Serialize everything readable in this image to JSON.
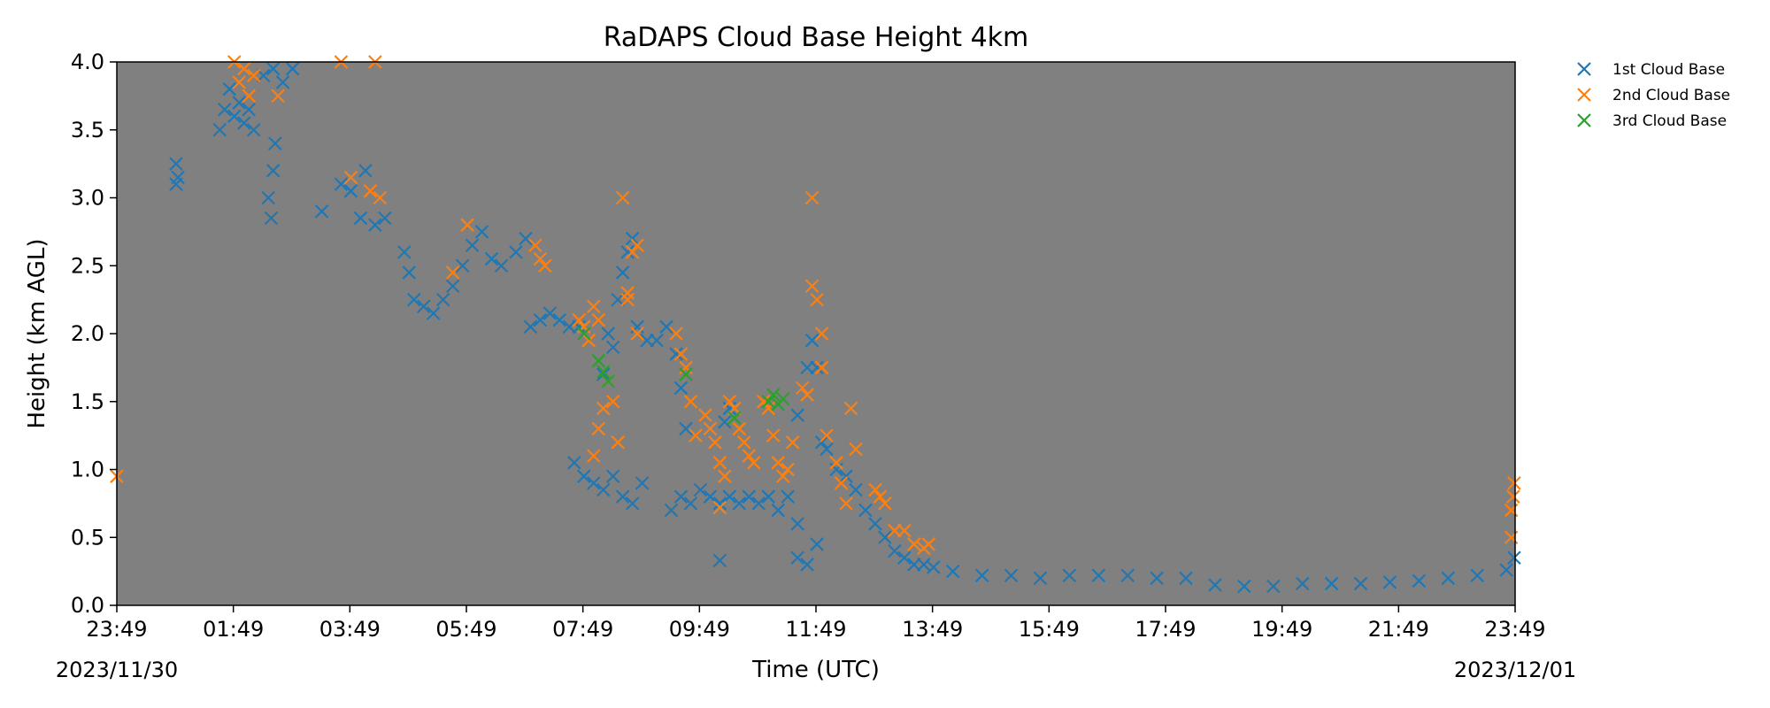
{
  "chart_data": {
    "type": "scatter",
    "title": "RaDAPS Cloud Base Height 4km",
    "xlabel": "Time (UTC)",
    "ylabel": "Height (km AGL)",
    "plot_background": "#808080",
    "marker": "x",
    "ylim": [
      0,
      4.0
    ],
    "xlim_hours_utc_from_2023-11-30T23:49": [
      0,
      24
    ],
    "x_ticks": [
      "23:49",
      "01:49",
      "03:49",
      "05:49",
      "07:49",
      "09:49",
      "11:49",
      "13:49",
      "15:49",
      "17:49",
      "19:49",
      "21:49",
      "23:49"
    ],
    "x_date_labels": {
      "start": "2023/11/30",
      "end": "2023/12/01"
    },
    "y_ticks": [
      "0.0",
      "0.5",
      "1.0",
      "1.5",
      "2.0",
      "2.5",
      "3.0",
      "3.5",
      "4.0"
    ],
    "legend_position": "outside-top-right",
    "series": [
      {
        "name": "1st Cloud Base",
        "color": "#1f77b4",
        "points": [
          [
            "00:50",
            3.1
          ],
          [
            "00:50",
            3.25
          ],
          [
            "00:52",
            3.15
          ],
          [
            "01:35",
            3.5
          ],
          [
            "01:40",
            3.65
          ],
          [
            "01:45",
            3.8
          ],
          [
            "01:50",
            3.6
          ],
          [
            "01:55",
            3.7
          ],
          [
            "02:00",
            3.55
          ],
          [
            "02:05",
            3.65
          ],
          [
            "02:10",
            3.5
          ],
          [
            "02:20",
            3.9
          ],
          [
            "02:30",
            3.95
          ],
          [
            "02:40",
            3.85
          ],
          [
            "02:50",
            3.95
          ],
          [
            "02:25",
            3.0
          ],
          [
            "02:28",
            2.85
          ],
          [
            "02:30",
            3.2
          ],
          [
            "02:32",
            3.4
          ],
          [
            "03:20",
            2.9
          ],
          [
            "03:40",
            3.1
          ],
          [
            "03:50",
            3.05
          ],
          [
            "04:00",
            2.85
          ],
          [
            "04:05",
            3.2
          ],
          [
            "04:15",
            2.8
          ],
          [
            "04:25",
            2.85
          ],
          [
            "04:45",
            2.6
          ],
          [
            "04:50",
            2.45
          ],
          [
            "04:55",
            2.25
          ],
          [
            "05:05",
            2.2
          ],
          [
            "05:15",
            2.15
          ],
          [
            "05:25",
            2.25
          ],
          [
            "05:35",
            2.35
          ],
          [
            "05:45",
            2.5
          ],
          [
            "05:55",
            2.65
          ],
          [
            "06:05",
            2.75
          ],
          [
            "06:15",
            2.55
          ],
          [
            "06:25",
            2.5
          ],
          [
            "06:40",
            2.6
          ],
          [
            "06:50",
            2.7
          ],
          [
            "06:55",
            2.05
          ],
          [
            "07:05",
            2.1
          ],
          [
            "07:15",
            2.15
          ],
          [
            "07:25",
            2.1
          ],
          [
            "07:35",
            2.05
          ],
          [
            "07:45",
            2.05
          ],
          [
            "07:40",
            1.05
          ],
          [
            "07:50",
            0.95
          ],
          [
            "08:00",
            0.9
          ],
          [
            "08:10",
            0.85
          ],
          [
            "08:20",
            0.95
          ],
          [
            "08:30",
            0.8
          ],
          [
            "08:40",
            0.75
          ],
          [
            "08:50",
            0.9
          ],
          [
            "08:10",
            1.7
          ],
          [
            "08:15",
            2.0
          ],
          [
            "08:20",
            1.9
          ],
          [
            "08:25",
            2.25
          ],
          [
            "08:30",
            2.45
          ],
          [
            "08:35",
            2.6
          ],
          [
            "08:40",
            2.7
          ],
          [
            "08:45",
            2.05
          ],
          [
            "08:55",
            1.95
          ],
          [
            "09:05",
            1.95
          ],
          [
            "09:15",
            2.05
          ],
          [
            "09:25",
            1.85
          ],
          [
            "09:30",
            1.6
          ],
          [
            "09:35",
            1.3
          ],
          [
            "09:20",
            0.7
          ],
          [
            "09:30",
            0.8
          ],
          [
            "09:40",
            0.75
          ],
          [
            "09:50",
            0.85
          ],
          [
            "10:00",
            0.8
          ],
          [
            "10:10",
            0.75
          ],
          [
            "10:20",
            0.8
          ],
          [
            "10:30",
            0.75
          ],
          [
            "10:40",
            0.8
          ],
          [
            "10:50",
            0.75
          ],
          [
            "11:00",
            0.8
          ],
          [
            "11:10",
            0.7
          ],
          [
            "11:20",
            0.8
          ],
          [
            "11:30",
            0.6
          ],
          [
            "10:15",
            1.35
          ],
          [
            "10:20",
            1.45
          ],
          [
            "10:10",
            0.33
          ],
          [
            "11:30",
            0.35
          ],
          [
            "11:40",
            0.3
          ],
          [
            "11:50",
            0.45
          ],
          [
            "11:30",
            1.4
          ],
          [
            "11:35",
            1.6
          ],
          [
            "11:40",
            1.75
          ],
          [
            "11:45",
            1.95
          ],
          [
            "11:50",
            1.75
          ],
          [
            "11:55",
            1.2
          ],
          [
            "12:00",
            1.15
          ],
          [
            "12:10",
            1.0
          ],
          [
            "12:20",
            0.95
          ],
          [
            "12:30",
            0.85
          ],
          [
            "12:40",
            0.7
          ],
          [
            "12:50",
            0.6
          ],
          [
            "13:00",
            0.5
          ],
          [
            "13:10",
            0.4
          ],
          [
            "13:20",
            0.35
          ],
          [
            "13:30",
            0.3
          ],
          [
            "13:40",
            0.3
          ],
          [
            "13:50",
            0.28
          ],
          [
            "14:10",
            0.25
          ],
          [
            "14:40",
            0.22
          ],
          [
            "15:10",
            0.22
          ],
          [
            "15:40",
            0.2
          ],
          [
            "16:10",
            0.22
          ],
          [
            "16:40",
            0.22
          ],
          [
            "17:10",
            0.22
          ],
          [
            "17:40",
            0.2
          ],
          [
            "18:10",
            0.2
          ],
          [
            "18:40",
            0.15
          ],
          [
            "19:10",
            0.14
          ],
          [
            "19:40",
            0.14
          ],
          [
            "20:10",
            0.16
          ],
          [
            "20:40",
            0.16
          ],
          [
            "21:10",
            0.16
          ],
          [
            "21:40",
            0.17
          ],
          [
            "22:10",
            0.18
          ],
          [
            "22:40",
            0.2
          ],
          [
            "23:10",
            0.22
          ],
          [
            "23:40",
            0.26
          ],
          [
            "23:48",
            0.35
          ]
        ]
      },
      {
        "name": "2nd Cloud Base",
        "color": "#ff7f0e",
        "points": [
          [
            "01:50",
            4.0
          ],
          [
            "01:55",
            3.85
          ],
          [
            "02:00",
            3.95
          ],
          [
            "02:05",
            3.75
          ],
          [
            "02:10",
            3.9
          ],
          [
            "02:35",
            3.75
          ],
          [
            "03:40",
            4.0
          ],
          [
            "04:15",
            4.0
          ],
          [
            "04:10",
            3.05
          ],
          [
            "04:20",
            3.0
          ],
          [
            "03:50",
            3.15
          ],
          [
            "05:50",
            2.8
          ],
          [
            "05:35",
            2.45
          ],
          [
            "07:00",
            2.65
          ],
          [
            "07:05",
            2.55
          ],
          [
            "07:10",
            2.5
          ],
          [
            "07:45",
            2.1
          ],
          [
            "07:50",
            2.05
          ],
          [
            "07:55",
            1.95
          ],
          [
            "08:00",
            2.2
          ],
          [
            "08:05",
            2.1
          ],
          [
            "08:00",
            1.1
          ],
          [
            "08:05",
            1.3
          ],
          [
            "08:10",
            1.45
          ],
          [
            "08:15",
            1.65
          ],
          [
            "08:20",
            1.5
          ],
          [
            "08:25",
            1.2
          ],
          [
            "08:30",
            3.0
          ],
          [
            "08:35",
            2.25
          ],
          [
            "08:35",
            2.3
          ],
          [
            "08:40",
            2.6
          ],
          [
            "08:45",
            2.65
          ],
          [
            "08:45",
            2.0
          ],
          [
            "09:25",
            2.0
          ],
          [
            "09:30",
            1.85
          ],
          [
            "09:35",
            1.75
          ],
          [
            "09:40",
            1.5
          ],
          [
            "09:45",
            1.25
          ],
          [
            "09:55",
            1.4
          ],
          [
            "10:00",
            1.3
          ],
          [
            "10:05",
            1.2
          ],
          [
            "10:10",
            1.05
          ],
          [
            "10:15",
            0.95
          ],
          [
            "10:10",
            0.72
          ],
          [
            "10:20",
            1.5
          ],
          [
            "10:25",
            1.45
          ],
          [
            "10:30",
            1.3
          ],
          [
            "10:35",
            1.2
          ],
          [
            "10:40",
            1.1
          ],
          [
            "10:45",
            1.05
          ],
          [
            "10:55",
            1.5
          ],
          [
            "11:00",
            1.45
          ],
          [
            "11:05",
            1.25
          ],
          [
            "11:10",
            1.05
          ],
          [
            "11:15",
            0.95
          ],
          [
            "11:20",
            1.0
          ],
          [
            "11:25",
            1.2
          ],
          [
            "11:35",
            1.6
          ],
          [
            "11:40",
            1.55
          ],
          [
            "11:45",
            3.0
          ],
          [
            "11:45",
            2.35
          ],
          [
            "11:50",
            2.25
          ],
          [
            "11:55",
            2.0
          ],
          [
            "11:55",
            1.75
          ],
          [
            "12:00",
            1.25
          ],
          [
            "12:10",
            1.05
          ],
          [
            "12:15",
            0.9
          ],
          [
            "12:20",
            0.75
          ],
          [
            "12:25",
            1.45
          ],
          [
            "12:30",
            1.15
          ],
          [
            "12:50",
            0.85
          ],
          [
            "12:55",
            0.8
          ],
          [
            "13:00",
            0.75
          ],
          [
            "13:10",
            0.55
          ],
          [
            "13:20",
            0.55
          ],
          [
            "13:30",
            0.45
          ],
          [
            "13:40",
            0.42
          ],
          [
            "13:45",
            0.45
          ],
          [
            "23:45",
            0.5
          ],
          [
            "23:45",
            0.7
          ],
          [
            "23:47",
            0.8
          ],
          [
            "23:48",
            0.9
          ],
          [
            "23:49",
            0.95
          ]
        ]
      },
      {
        "name": "3rd Cloud Base",
        "color": "#2ca02c",
        "points": [
          [
            "07:50",
            2.0
          ],
          [
            "08:05",
            1.8
          ],
          [
            "08:10",
            1.72
          ],
          [
            "08:15",
            1.65
          ],
          [
            "09:35",
            1.7
          ],
          [
            "10:25",
            1.38
          ],
          [
            "11:00",
            1.5
          ],
          [
            "11:05",
            1.55
          ],
          [
            "11:10",
            1.48
          ],
          [
            "11:15",
            1.52
          ]
        ]
      }
    ]
  }
}
